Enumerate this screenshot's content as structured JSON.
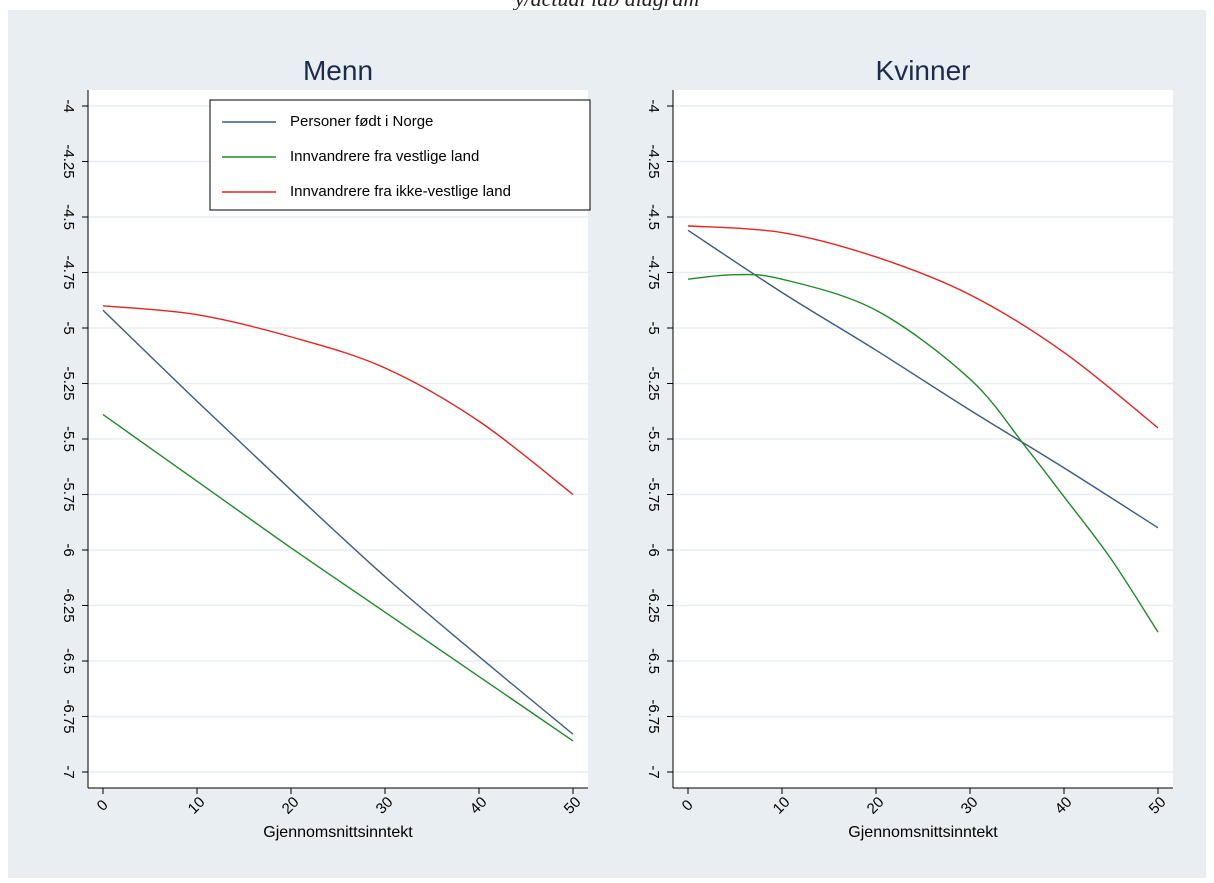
{
  "top_text": "y/actual lab diagram",
  "colors": {
    "background": "#e9eef2",
    "plot_bg": "#ffffff",
    "grid": "#e9eef2",
    "title": "#1c2a4c",
    "norway": "#3c5b7b",
    "western": "#1f8a2a",
    "non_western": "#e8221f"
  },
  "chart_data": [
    {
      "type": "line",
      "title": "Menn",
      "xlabel": "Gjennomsnittsinntekt",
      "ylabel": "",
      "xlim": [
        0,
        50
      ],
      "ylim": [
        -7,
        -4
      ],
      "xticks": [
        0,
        10,
        20,
        30,
        40,
        50
      ],
      "yticks": [
        -4,
        -4.25,
        -4.5,
        -4.75,
        -5,
        -5.25,
        -5.5,
        -5.75,
        -6,
        -6.25,
        -6.5,
        -6.75,
        -7
      ],
      "grid": true,
      "legend": "top-right",
      "series": [
        {
          "name": "Personer født i Norge",
          "color_key": "norway",
          "x": [
            0,
            10,
            20,
            30,
            40,
            50
          ],
          "y": [
            -4.92,
            -5.33,
            -5.73,
            -6.12,
            -6.48,
            -6.83
          ]
        },
        {
          "name": "Innvandrere fra vestlige land",
          "color_key": "western",
          "x": [
            0,
            10,
            20,
            30,
            40,
            50
          ],
          "y": [
            -5.39,
            -5.69,
            -5.99,
            -6.28,
            -6.57,
            -6.86
          ]
        },
        {
          "name": "Innvandrere fra ikke-vestlige land",
          "color_key": "non_western",
          "x": [
            0,
            10,
            20,
            30,
            40,
            50
          ],
          "y": [
            -4.9,
            -4.94,
            -5.04,
            -5.18,
            -5.42,
            -5.75
          ]
        }
      ]
    },
    {
      "type": "line",
      "title": "Kvinner",
      "xlabel": "Gjennomsnittsinntekt",
      "ylabel": "",
      "xlim": [
        0,
        50
      ],
      "ylim": [
        -7,
        -4
      ],
      "xticks": [
        0,
        10,
        20,
        30,
        40,
        50
      ],
      "yticks": [
        -4,
        -4.25,
        -4.5,
        -4.75,
        -5,
        -5.25,
        -5.5,
        -5.75,
        -6,
        -6.25,
        -6.5,
        -6.75,
        -7
      ],
      "grid": true,
      "legend": "none",
      "series": [
        {
          "name": "Personer født i Norge",
          "color_key": "norway",
          "x": [
            0,
            10,
            20,
            30,
            40,
            50
          ],
          "y": [
            -4.56,
            -4.84,
            -5.1,
            -5.37,
            -5.63,
            -5.9
          ]
        },
        {
          "name": "Innvandrere fra vestlige land",
          "color_key": "western",
          "x": [
            0,
            5,
            10,
            20,
            30,
            36,
            40,
            45,
            50
          ],
          "y": [
            -4.78,
            -4.76,
            -4.78,
            -4.92,
            -5.23,
            -5.54,
            -5.76,
            -6.04,
            -6.37
          ]
        },
        {
          "name": "Innvandrere fra ikke-vestlige land",
          "color_key": "non_western",
          "x": [
            0,
            10,
            20,
            30,
            40,
            50
          ],
          "y": [
            -4.54,
            -4.57,
            -4.68,
            -4.85,
            -5.11,
            -5.45
          ]
        }
      ]
    }
  ]
}
